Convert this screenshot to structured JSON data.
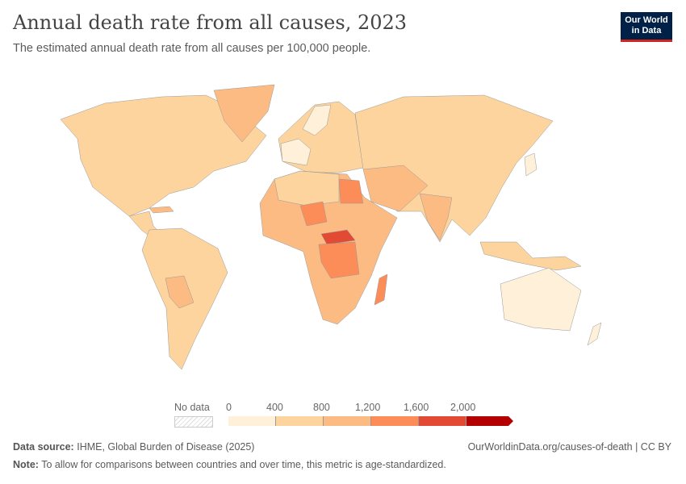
{
  "title": "Annual death rate from all causes, 2023",
  "subtitle": "The estimated annual death rate from all causes per 100,000 people.",
  "logo": {
    "line1": "Our World",
    "line2": "in Data"
  },
  "legend": {
    "no_data_label": "No data",
    "ticks": [
      "0",
      "400",
      "800",
      "1,200",
      "1,600",
      "2,000"
    ],
    "bins": [
      {
        "range": "0-400",
        "color": "#fef0d9"
      },
      {
        "range": "400-800",
        "color": "#fdd49e"
      },
      {
        "range": "800-1,200",
        "color": "#fdbb84"
      },
      {
        "range": "1,200-1,600",
        "color": "#fc8d59"
      },
      {
        "range": "1,600-2,000",
        "color": "#e34a33"
      },
      {
        "range": ">2,000",
        "color": "#b30000"
      }
    ]
  },
  "footer": {
    "source_label": "Data source:",
    "source": "IHME, Global Burden of Disease (2025)",
    "url": "OurWorldinData.org/causes-of-death | CC BY",
    "note_label": "Note:",
    "note": "To allow for comparisons between countries and over time, this metric is age-standardized."
  }
}
